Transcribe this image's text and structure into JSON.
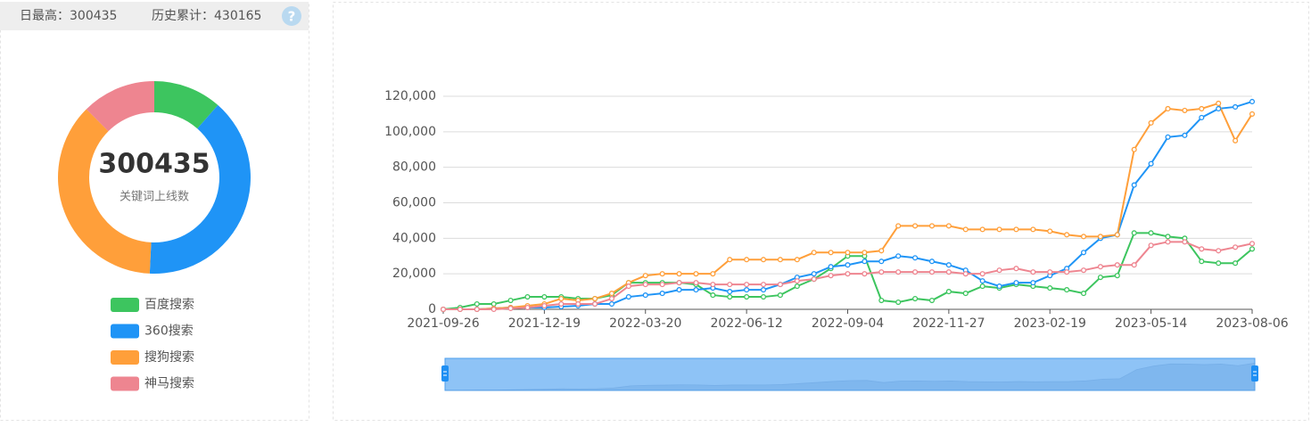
{
  "header": {
    "daily_max": "日最高：300435",
    "history_total": "历史累计：430165"
  },
  "chart_data": [
    {
      "type": "pie",
      "total": 300435,
      "subtitle": "关键词上线数",
      "categories": [
        "百度搜索",
        "360搜索",
        "搜狗搜索",
        "神马搜索"
      ],
      "values": [
        34500,
        118000,
        110500,
        37435
      ],
      "colors": [
        "#3dc55f",
        "#1f94f6",
        "#ff9f3a",
        "#ee8590"
      ]
    },
    {
      "type": "line",
      "categories": [
        "2021-09-26",
        null,
        null,
        null,
        null,
        null,
        "2021-12-19",
        null,
        null,
        null,
        null,
        null,
        "2022-03-20",
        null,
        null,
        null,
        null,
        null,
        "2022-06-12",
        null,
        null,
        null,
        null,
        null,
        "2022-09-04",
        null,
        null,
        null,
        null,
        null,
        "2022-11-27",
        null,
        null,
        null,
        null,
        null,
        "2023-02-19",
        null,
        null,
        null,
        null,
        null,
        "2023-05-14",
        null,
        null,
        null,
        null,
        null,
        "2023-08-06"
      ],
      "ylim": [
        0,
        120000
      ],
      "yticks": [
        0,
        {
          "value": 20000,
          "label": "20,000"
        },
        {
          "value": 40000,
          "label": "40,000"
        },
        {
          "value": 60000,
          "label": "60,000"
        },
        {
          "value": 80000,
          "label": "80,000"
        },
        {
          "value": 100000,
          "label": "100,000"
        },
        {
          "value": 120000,
          "label": "120,000"
        }
      ],
      "grid": true,
      "series": [
        {
          "color": "#3dc55f",
          "values": [
            0,
            1000,
            3000,
            3000,
            5000,
            7000,
            7000,
            7000,
            6000,
            6000,
            8000,
            15000,
            15000,
            15000,
            15000,
            14000,
            8000,
            7000,
            7000,
            7000,
            8000,
            13000,
            17000,
            23000,
            30000,
            30000,
            5000,
            4000,
            6000,
            5000,
            10000,
            9000,
            13000,
            12000,
            14000,
            13000,
            12000,
            11000,
            9000,
            18000,
            19000,
            43000,
            43000,
            41000,
            40000,
            27000,
            26000,
            26000,
            34000
          ]
        },
        {
          "color": "#1f94f6",
          "values": [
            0,
            0,
            0,
            500,
            1000,
            1000,
            1000,
            1500,
            2000,
            3000,
            3000,
            7000,
            8000,
            9000,
            11000,
            11000,
            12000,
            10000,
            11000,
            11000,
            14000,
            18000,
            20000,
            24000,
            25000,
            27000,
            27000,
            30000,
            29000,
            27000,
            25000,
            22000,
            16000,
            13000,
            15000,
            15000,
            19000,
            23000,
            32000,
            40000,
            42000,
            70000,
            82000,
            97000,
            98000,
            108000,
            113000,
            114000,
            117000
          ]
        },
        {
          "color": "#ff9f3a",
          "values": [
            0,
            0,
            0,
            500,
            1000,
            2000,
            3000,
            6000,
            5000,
            6000,
            9000,
            15000,
            19000,
            20000,
            20000,
            20000,
            20000,
            28000,
            28000,
            28000,
            28000,
            28000,
            32000,
            32000,
            32000,
            32000,
            33000,
            47000,
            47000,
            47000,
            47000,
            45000,
            45000,
            45000,
            45000,
            45000,
            44000,
            42000,
            41000,
            41000,
            42000,
            90000,
            105000,
            113000,
            112000,
            113000,
            116000,
            95000,
            110000
          ]
        },
        {
          "color": "#ee8590",
          "values": [
            0,
            0,
            0,
            0,
            500,
            1000,
            2000,
            3000,
            3000,
            3000,
            6000,
            13000,
            14000,
            14000,
            15000,
            15000,
            14000,
            14000,
            14000,
            14000,
            14000,
            16000,
            17000,
            19000,
            20000,
            20000,
            21000,
            21000,
            21000,
            21000,
            21000,
            20000,
            20000,
            22000,
            23000,
            21000,
            21000,
            21000,
            22000,
            24000,
            25000,
            25000,
            36000,
            38000,
            38000,
            34000,
            33000,
            35000,
            37000
          ]
        }
      ]
    }
  ]
}
